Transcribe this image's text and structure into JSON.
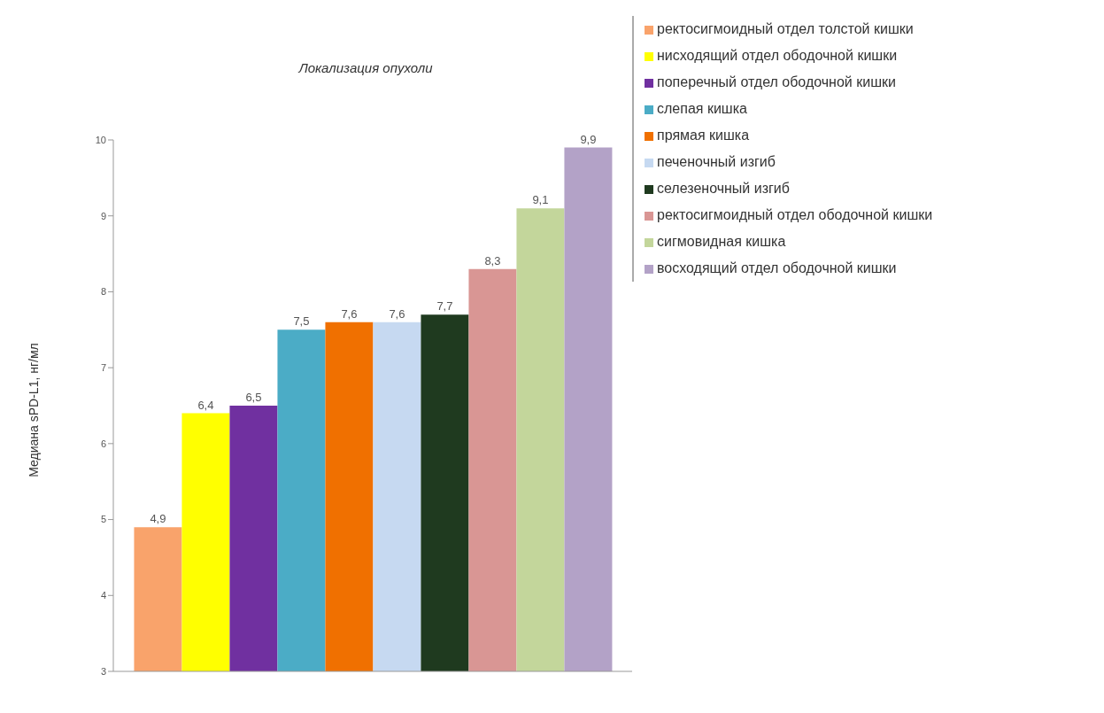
{
  "chart_data": {
    "type": "bar",
    "title": "Локализация опухоли",
    "ylabel": "Медиана sPD-L1, нг/мл",
    "categories": [
      null
    ],
    "series": [
      {
        "name": "ректосигмоидный отдел толстой кишки",
        "color": "#f9a36b",
        "values": [
          4.9
        ],
        "value_labels": [
          "4,9"
        ]
      },
      {
        "name": "нисходящий отдел ободочной кишки",
        "color": "#ffff00",
        "values": [
          6.4
        ],
        "value_labels": [
          "6,4"
        ]
      },
      {
        "name": "поперечный отдел ободочной кишки",
        "color": "#7030a0",
        "values": [
          6.5
        ],
        "value_labels": [
          "6,5"
        ]
      },
      {
        "name": "слепая кишка",
        "color": "#4bacc6",
        "values": [
          7.5
        ],
        "value_labels": [
          "7,5"
        ]
      },
      {
        "name": "прямая кишка",
        "color": "#f07000",
        "values": [
          7.6
        ],
        "value_labels": [
          "7,6"
        ]
      },
      {
        "name": "печеночный изгиб",
        "color": "#c6d9f1",
        "values": [
          7.6
        ],
        "value_labels": [
          "7,6"
        ]
      },
      {
        "name": "селезеночный изгиб",
        "color": "#1f3a1f",
        "values": [
          7.7
        ],
        "value_labels": [
          "7,7"
        ]
      },
      {
        "name": "ректосигмоидный отдел ободочной кишки",
        "color": "#d99694",
        "values": [
          8.3
        ],
        "value_labels": [
          "8,3"
        ]
      },
      {
        "name": "сигмовидная кишка",
        "color": "#c3d69b",
        "values": [
          9.1
        ],
        "value_labels": [
          "9,1"
        ]
      },
      {
        "name": "восходящий отдел ободочной кишки",
        "color": "#b3a2c7",
        "values": [
          9.9
        ],
        "value_labels": [
          "9,9"
        ]
      }
    ],
    "ylim": [
      3,
      10
    ],
    "yticks": [
      3,
      4,
      5,
      6,
      7,
      8,
      9,
      10
    ],
    "grid": false,
    "legend": "right"
  }
}
